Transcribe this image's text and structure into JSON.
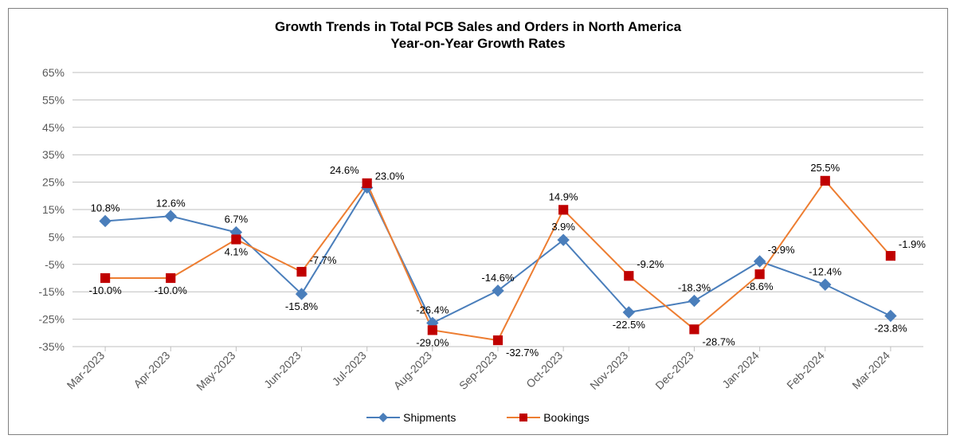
{
  "chart": {
    "type": "line",
    "title_line1": "Growth Trends in Total PCB Sales and Orders in North America",
    "title_line2": "Year-on-Year Growth Rates",
    "title_fontsize": 17,
    "title_fontweight": "bold",
    "categories": [
      "Mar-2023",
      "Apr-2023",
      "May-2023",
      "Jun-2023",
      "Jul-2023",
      "Aug-2023",
      "Sep-2023",
      "Oct-2023",
      "Nov-2023",
      "Dec-2023",
      "Jan-2024",
      "Feb-2024",
      "Mar-2024"
    ],
    "ytick_min": -35,
    "ytick_max": 65,
    "ytick_step": 10,
    "y_axis_format_suffix": "%",
    "grid_color": "#bfbfbf",
    "zero_line_color": "#7f7f7f",
    "zero_line_width": 3,
    "axis_label_color": "#595959",
    "axis_label_fontsize": 14,
    "data_label_fontsize": 13,
    "x_label_rotation_deg": -45,
    "background_color": "#ffffff",
    "line_width": 2,
    "marker_size": 7,
    "series": [
      {
        "name": "Shipments",
        "color": "#4a7ebb",
        "marker": "diamond",
        "marker_fill": "#4a7ebb",
        "values": [
          10.8,
          12.6,
          6.7,
          -15.8,
          23.0,
          -26.4,
          -14.6,
          3.9,
          -22.5,
          -18.3,
          -3.9,
          -12.4,
          -23.8
        ],
        "label_pos": [
          "above",
          "above",
          "above",
          "below",
          "above-right",
          "above",
          "above",
          "above",
          "below",
          "above",
          "above-right",
          "above",
          "below"
        ]
      },
      {
        "name": "Bookings",
        "color": "#ed7d31",
        "marker": "square",
        "marker_fill": "#c00000",
        "values": [
          -10.0,
          -10.0,
          4.1,
          -7.7,
          24.6,
          -29.0,
          -32.7,
          14.9,
          -9.2,
          -28.7,
          -8.6,
          25.5,
          -1.9
        ],
        "label_pos": [
          "below",
          "below",
          "below",
          "above-right",
          "above-left",
          "below",
          "below-right",
          "above",
          "above-right",
          "below-right",
          "below",
          "above",
          "above-right"
        ]
      }
    ]
  },
  "legend": {
    "shipments_label": "Shipments",
    "bookings_label": "Bookings"
  }
}
